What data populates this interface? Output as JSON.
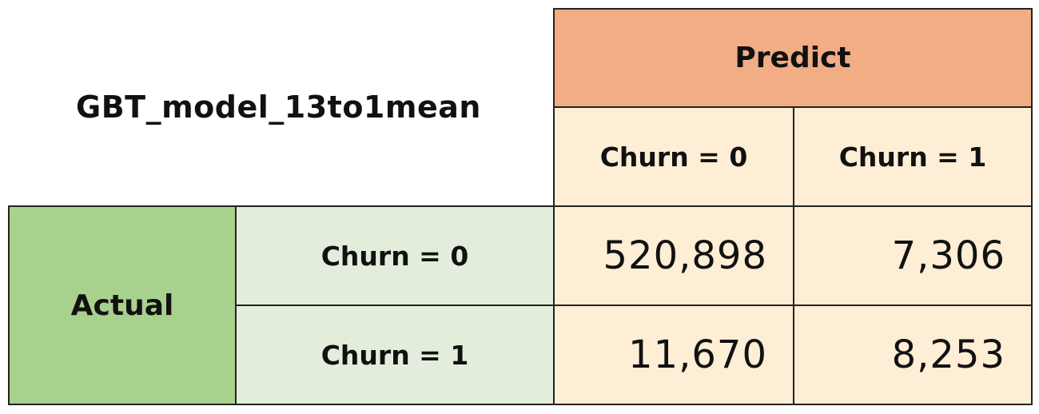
{
  "chart_data": {
    "type": "table",
    "title": "GBT_model_13to1mean",
    "column_group_label": "Predict",
    "row_group_label": "Actual",
    "columns": [
      "Churn = 0",
      "Churn = 1"
    ],
    "rows": [
      "Churn = 0",
      "Churn = 1"
    ],
    "display": [
      [
        "520,898",
        "7,306"
      ],
      [
        "11,670",
        "8,253"
      ]
    ],
    "values": [
      [
        520898,
        7306
      ],
      [
        11670,
        8253
      ]
    ]
  },
  "colors": {
    "predict_header": "#f2ad85",
    "predict_subheader": "#fdeed5",
    "actual_header": "#a9d18e",
    "actual_subheader": "#e2eedb",
    "value_cells": "#fdeed5",
    "border": "#222222"
  }
}
